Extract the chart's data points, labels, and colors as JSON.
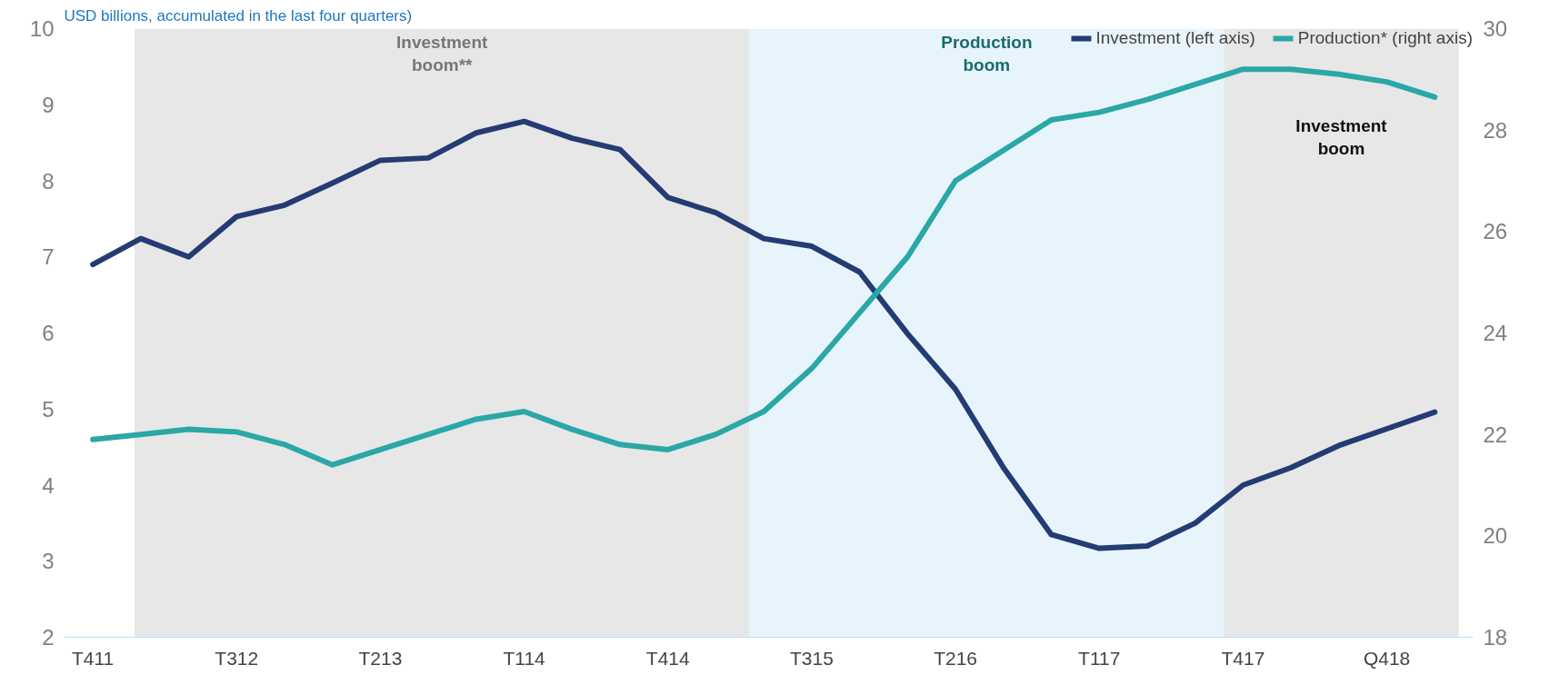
{
  "chart_data": {
    "type": "line",
    "title": "USD billions, accumulated in the last four quarters)",
    "categories": [
      "T411",
      null,
      null,
      "T312",
      null,
      null,
      "T213",
      null,
      null,
      "T114",
      null,
      null,
      "T414",
      null,
      null,
      "T315",
      null,
      null,
      "T216",
      null,
      null,
      "T117",
      null,
      null,
      "T417",
      null,
      null,
      "Q418",
      null
    ],
    "series": [
      {
        "name": "Investment (left axis)",
        "color": "#243b73",
        "values": [
          6.9,
          7.24,
          7.0,
          7.53,
          7.68,
          7.97,
          8.27,
          8.3,
          8.63,
          8.78,
          8.56,
          8.41,
          7.78,
          7.58,
          7.24,
          7.14,
          6.8,
          5.99,
          5.26,
          4.23,
          3.35,
          3.17,
          3.2,
          3.5,
          4.0,
          4.23,
          4.52,
          4.74,
          4.96
        ]
      },
      {
        "name": "Production* (right axis)",
        "color": "#2aa7a7",
        "axis": "y2",
        "values": [
          21.9,
          22.0,
          22.1,
          22.05,
          21.8,
          21.4,
          21.7,
          22.0,
          22.3,
          22.45,
          22.1,
          21.8,
          21.7,
          22.0,
          22.45,
          23.3,
          24.4,
          25.5,
          27.0,
          27.6,
          28.2,
          28.35,
          28.6,
          28.9,
          29.2,
          29.2,
          29.1,
          28.95,
          28.65
        ]
      }
    ],
    "ylim": [
      2,
      10
    ],
    "yticks": [
      2,
      3,
      4,
      5,
      6,
      7,
      8,
      9,
      10
    ],
    "y2lim": [
      18,
      30
    ],
    "y2ticks": [
      18,
      20,
      22,
      24,
      26,
      28,
      30
    ],
    "annotations": [
      "Investment boom**",
      "Production boom",
      "Investment boom"
    ],
    "grid": false,
    "legend": "top right",
    "marker": "none",
    "line_style": "solid"
  }
}
